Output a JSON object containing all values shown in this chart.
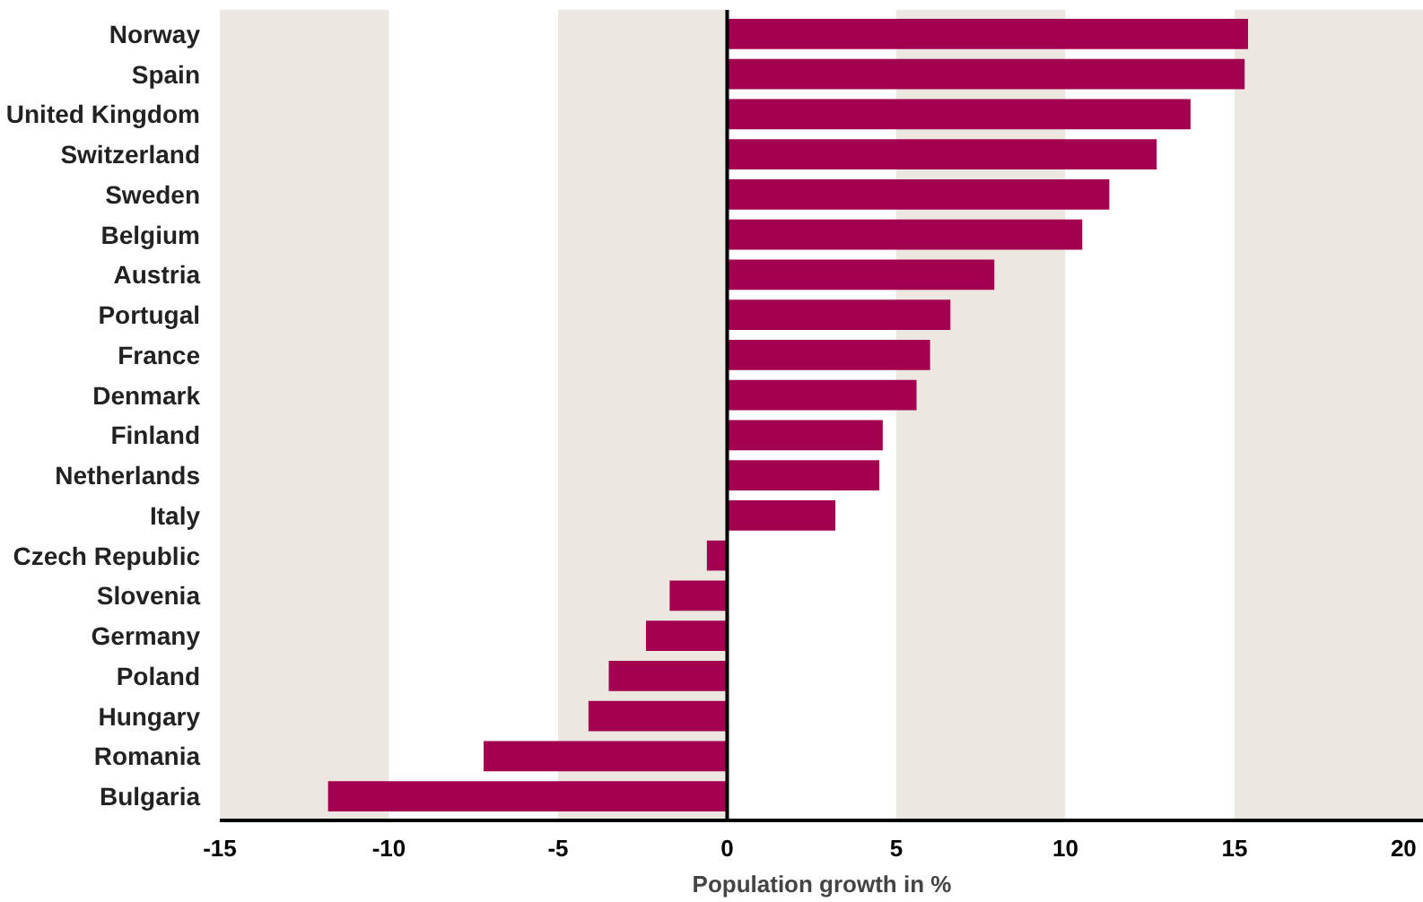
{
  "chart_data": {
    "type": "bar",
    "orientation": "horizontal",
    "xlabel": "Population growth in %",
    "categories": [
      "Norway",
      "Spain",
      "United Kingdom",
      "Switzerland",
      "Sweden",
      "Belgium",
      "Austria",
      "Portugal",
      "France",
      "Denmark",
      "Finland",
      "Netherlands",
      "Italy",
      "Czech Republic",
      "Slovenia",
      "Germany",
      "Poland",
      "Hungary",
      "Romania",
      "Bulgaria"
    ],
    "values": [
      15.4,
      15.3,
      13.7,
      12.7,
      11.3,
      10.5,
      7.9,
      6.6,
      6.0,
      5.6,
      4.6,
      4.5,
      3.2,
      -0.6,
      -1.7,
      -2.4,
      -3.5,
      -4.1,
      -7.2,
      -11.8
    ],
    "color": "#a3004f",
    "xlim": [
      -15,
      20.6
    ],
    "xticks": [
      -15,
      -10,
      -5,
      0,
      5,
      10,
      15,
      20
    ],
    "bands": [
      {
        "axis": "x",
        "from": -15,
        "to": -10,
        "color": "#ece8e1"
      },
      {
        "axis": "x",
        "from": -5,
        "to": 0,
        "color": "#ece8e1"
      },
      {
        "axis": "x",
        "from": 5,
        "to": 10,
        "color": "#ece8e1"
      },
      {
        "axis": "x",
        "from": 15,
        "to": 20.6,
        "color": "#ece8e1"
      }
    ],
    "ref_lines": [
      {
        "axis": "x",
        "value": 0,
        "color": "#000000"
      }
    ],
    "grid": false,
    "legend": false
  }
}
